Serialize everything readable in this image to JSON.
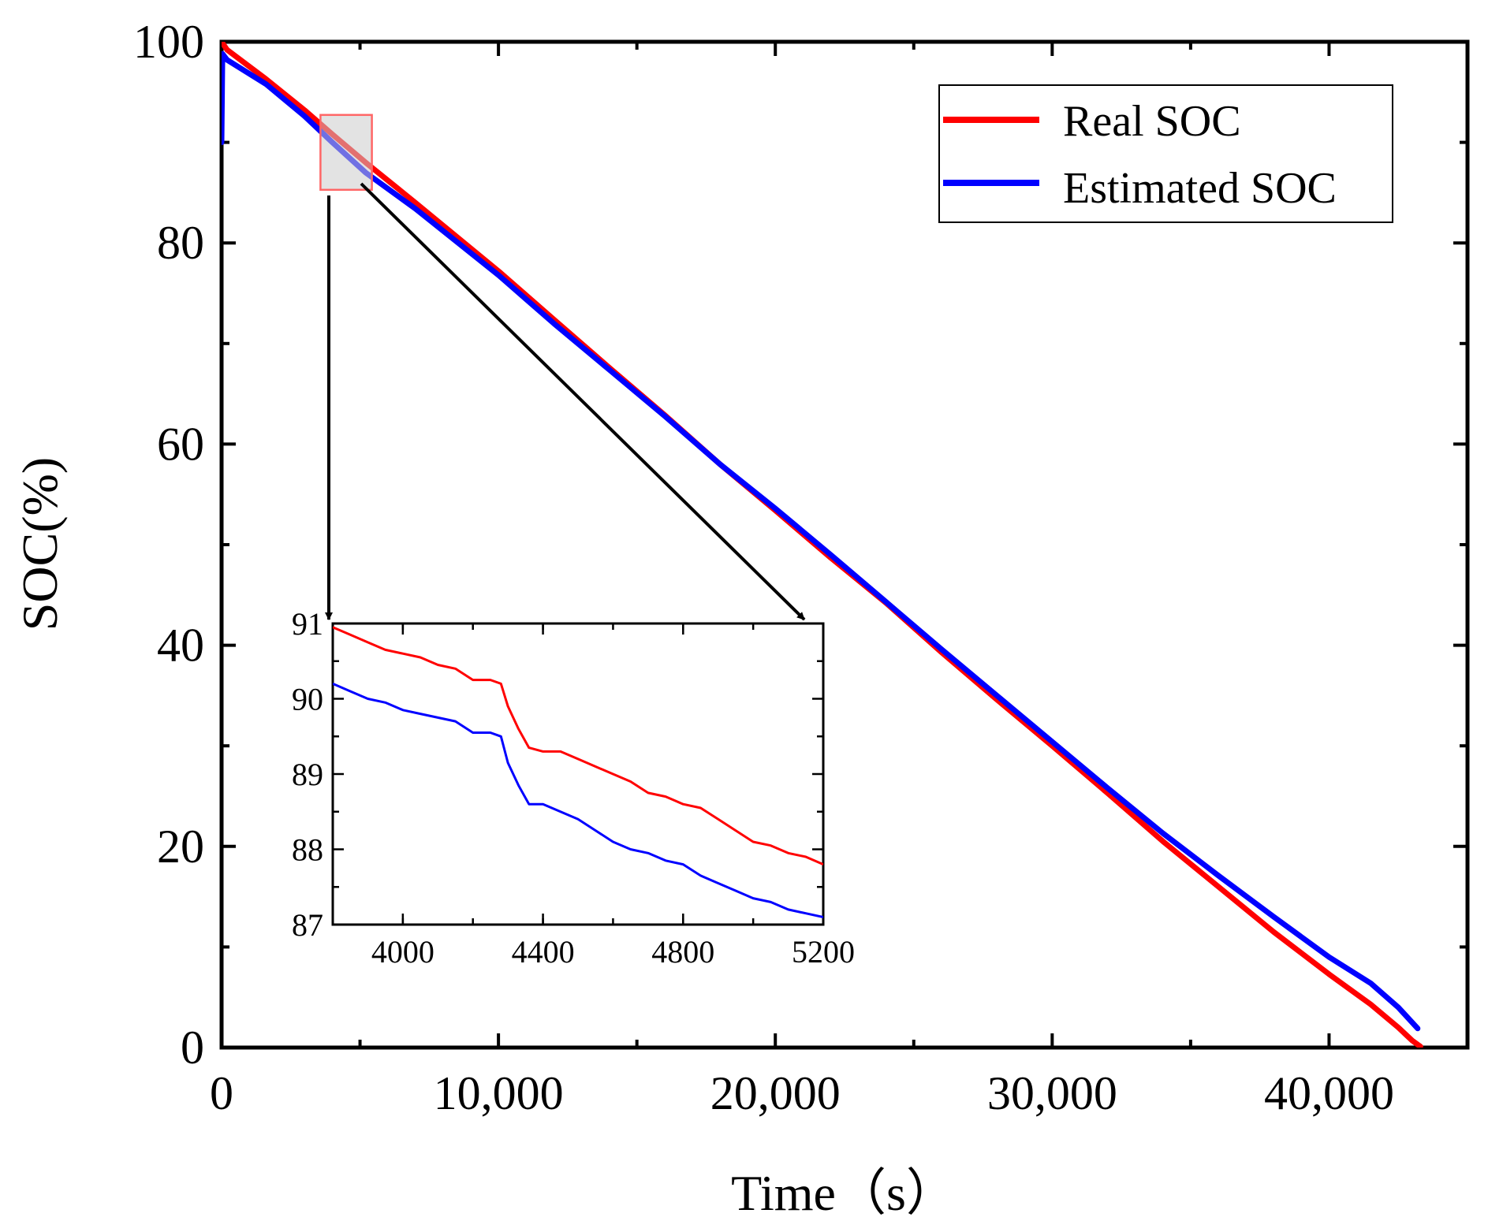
{
  "chart_data": {
    "type": "line",
    "xlabel": "Time（s）",
    "ylabel": "SOC(%)",
    "xlim": [
      0,
      45000
    ],
    "ylim": [
      0,
      100
    ],
    "xticks": [
      0,
      10000,
      20000,
      30000,
      40000
    ],
    "xtick_labels": [
      "0",
      "10,000",
      "20,000",
      "30,000",
      "40,000"
    ],
    "yticks": [
      0,
      20,
      40,
      60,
      80,
      100
    ],
    "ytick_labels": [
      "0",
      "20",
      "40",
      "60",
      "80",
      "100"
    ],
    "legend": {
      "position": "top-right"
    },
    "series": [
      {
        "name": "Real SOC",
        "color": "#ff0000",
        "x": [
          0,
          200,
          1600,
          3000,
          4000,
          5200,
          7000,
          10000,
          12000,
          14000,
          16000,
          18000,
          20000,
          22000,
          24000,
          26000,
          28000,
          30000,
          32000,
          34000,
          36000,
          38000,
          40000,
          41500,
          42500,
          43000,
          43300
        ],
        "y": [
          100,
          99.2,
          96.3,
          93.2,
          90.8,
          88.0,
          84.0,
          77.2,
          72.4,
          67.6,
          62.9,
          58.0,
          53.4,
          48.7,
          44.2,
          39.3,
          34.6,
          30.0,
          25.3,
          20.5,
          16.0,
          11.5,
          7.3,
          4.3,
          2.0,
          0.7,
          0.1
        ]
      },
      {
        "name": "Estimated SOC",
        "color": "#0000ff",
        "x": [
          0,
          30,
          200,
          1600,
          3000,
          4000,
          5200,
          7000,
          10000,
          12000,
          14000,
          16000,
          18000,
          20000,
          22000,
          24000,
          26000,
          28000,
          30000,
          32000,
          34000,
          36000,
          38000,
          40000,
          41500,
          42500,
          43200
        ],
        "y": [
          90,
          98.8,
          98.2,
          95.8,
          92.6,
          90.0,
          87.0,
          83.4,
          76.8,
          72.0,
          67.4,
          62.8,
          58.0,
          53.6,
          49.0,
          44.3,
          39.6,
          35.0,
          30.4,
          25.8,
          21.3,
          17.1,
          13.0,
          9.0,
          6.4,
          4.0,
          1.9
        ]
      }
    ],
    "inset": {
      "xlim": [
        3800,
        5200
      ],
      "ylim": [
        87,
        91
      ],
      "xticks": [
        4000,
        4400,
        4800,
        5200
      ],
      "xtick_labels": [
        "4000",
        "4400",
        "4800",
        "5200"
      ],
      "yticks": [
        87,
        88,
        89,
        90,
        91
      ],
      "ytick_labels": [
        "87",
        "88",
        "89",
        "90",
        "91"
      ],
      "zoom_region": {
        "x": [
          3800,
          5200
        ],
        "y": [
          87,
          91
        ]
      },
      "series": [
        {
          "name": "Real SOC",
          "color": "#ff0000",
          "x": [
            3800,
            3850,
            3900,
            3950,
            4000,
            4050,
            4100,
            4150,
            4200,
            4250,
            4280,
            4300,
            4330,
            4360,
            4400,
            4450,
            4500,
            4550,
            4600,
            4650,
            4700,
            4750,
            4800,
            4850,
            4900,
            4950,
            5000,
            5050,
            5100,
            5150,
            5200
          ],
          "y": [
            90.95,
            90.85,
            90.75,
            90.65,
            90.6,
            90.55,
            90.45,
            90.4,
            90.25,
            90.25,
            90.2,
            89.9,
            89.6,
            89.35,
            89.3,
            89.3,
            89.2,
            89.1,
            89.0,
            88.9,
            88.75,
            88.7,
            88.6,
            88.55,
            88.4,
            88.25,
            88.1,
            88.05,
            87.95,
            87.9,
            87.8
          ]
        },
        {
          "name": "Estimated SOC",
          "color": "#0000ff",
          "x": [
            3800,
            3850,
            3900,
            3950,
            4000,
            4050,
            4100,
            4150,
            4200,
            4250,
            4280,
            4300,
            4330,
            4360,
            4400,
            4450,
            4500,
            4550,
            4600,
            4650,
            4700,
            4750,
            4800,
            4850,
            4900,
            4950,
            5000,
            5050,
            5100,
            5150,
            5200
          ],
          "y": [
            90.2,
            90.1,
            90.0,
            89.95,
            89.85,
            89.8,
            89.75,
            89.7,
            89.55,
            89.55,
            89.5,
            89.15,
            88.85,
            88.6,
            88.6,
            88.5,
            88.4,
            88.25,
            88.1,
            88.0,
            87.95,
            87.85,
            87.8,
            87.65,
            87.55,
            87.45,
            87.35,
            87.3,
            87.2,
            87.15,
            87.1
          ]
        }
      ]
    }
  }
}
